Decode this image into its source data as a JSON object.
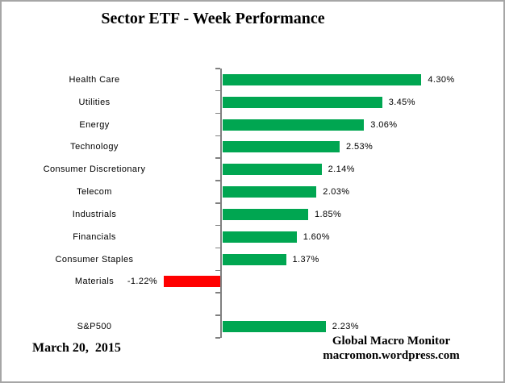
{
  "title": "Sector ETF - Week Performance",
  "footer": {
    "date": "March 20,  2015",
    "credit_line1": "Global Macro Monitor",
    "credit_line2": "macromon.wordpress.com"
  },
  "colors": {
    "positive_bar": "#00A651",
    "negative_bar": "#FF0000",
    "axis": "#808080",
    "text": "#000000",
    "frame_border": "#A6A6A6"
  },
  "chart_data": {
    "type": "bar",
    "orientation": "horizontal",
    "title": "Sector ETF - Week Performance",
    "xlabel": "",
    "ylabel": "",
    "grid": false,
    "legend": false,
    "value_unit": "%",
    "rows": [
      {
        "category": "Health Care",
        "value": 4.3,
        "label": "4.30%"
      },
      {
        "category": "Utilities",
        "value": 3.45,
        "label": "3.45%"
      },
      {
        "category": "Energy",
        "value": 3.06,
        "label": "3.06%"
      },
      {
        "category": "Technology",
        "value": 2.53,
        "label": "2.53%"
      },
      {
        "category": "Consumer Discretionary",
        "value": 2.14,
        "label": "2.14%"
      },
      {
        "category": "Telecom",
        "value": 2.03,
        "label": "2.03%"
      },
      {
        "category": "Industrials",
        "value": 1.85,
        "label": "1.85%"
      },
      {
        "category": "Financials",
        "value": 1.6,
        "label": "1.60%"
      },
      {
        "category": "Consumer Staples",
        "value": 1.37,
        "label": "1.37%"
      },
      {
        "category": "Materials",
        "value": -1.22,
        "label": "-1.22%"
      },
      {
        "category": "",
        "value": null,
        "label": ""
      },
      {
        "category": "S&P500",
        "value": 2.23,
        "label": "2.23%"
      }
    ]
  }
}
